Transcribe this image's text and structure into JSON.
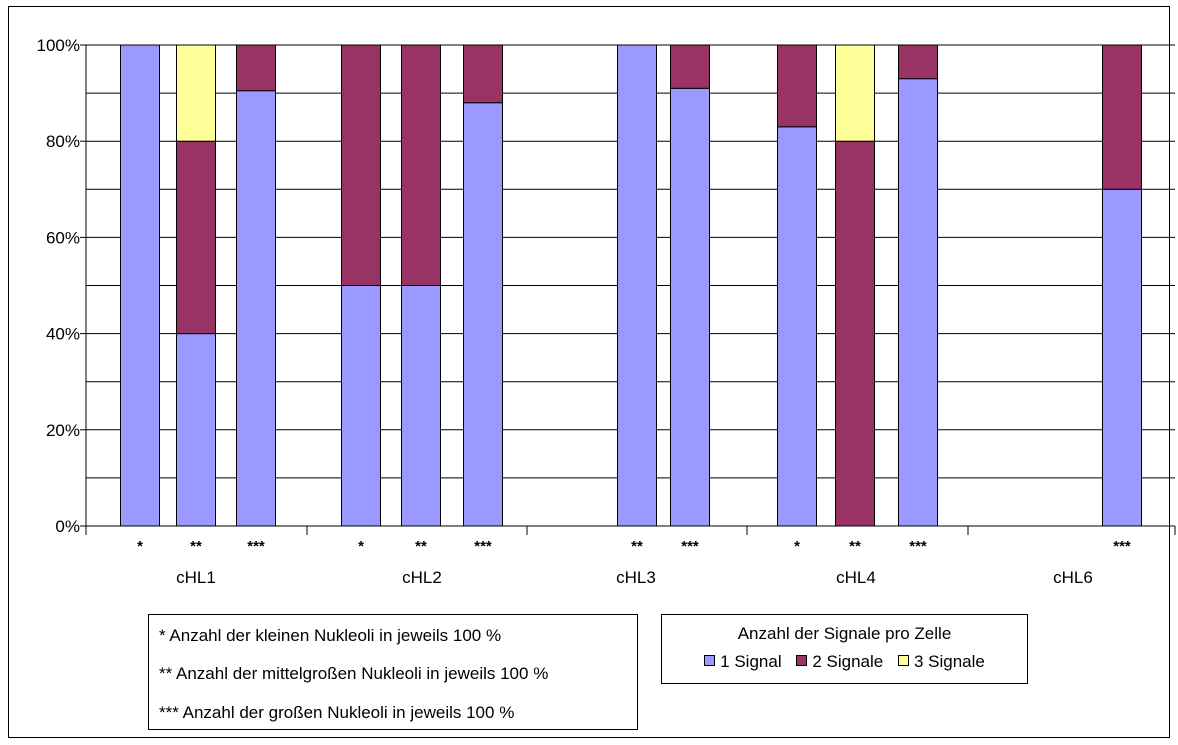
{
  "chart_data": {
    "type": "bar",
    "stacked": true,
    "y_axis": {
      "min": 0,
      "max": 100,
      "ticks": [
        "0%",
        "20%",
        "40%",
        "60%",
        "80%",
        "100%"
      ]
    },
    "grid": true,
    "groups": [
      "cHL1",
      "cHL2",
      "cHL3",
      "cHL4",
      "cHL6"
    ],
    "bars": [
      {
        "group": "cHL1",
        "label": "*",
        "values": [
          100,
          0,
          0
        ]
      },
      {
        "group": "cHL1",
        "label": "**",
        "values": [
          40,
          40,
          20
        ]
      },
      {
        "group": "cHL1",
        "label": "***",
        "values": [
          90.5,
          9.5,
          0
        ]
      },
      {
        "group": "cHL2",
        "label": "*",
        "values": [
          50,
          50,
          0
        ]
      },
      {
        "group": "cHL2",
        "label": "**",
        "values": [
          50,
          50,
          0
        ]
      },
      {
        "group": "cHL2",
        "label": "***",
        "values": [
          88,
          12,
          0
        ]
      },
      {
        "group": "cHL3",
        "label": "**",
        "values": [
          100,
          0,
          0
        ]
      },
      {
        "group": "cHL3",
        "label": "***",
        "values": [
          91,
          9,
          0
        ]
      },
      {
        "group": "cHL4",
        "label": "*",
        "values": [
          83,
          17,
          0
        ]
      },
      {
        "group": "cHL4",
        "label": "**",
        "values": [
          0,
          80,
          20
        ]
      },
      {
        "group": "cHL4",
        "label": "***",
        "values": [
          93,
          7,
          0
        ]
      },
      {
        "group": "cHL6",
        "label": "***",
        "values": [
          70,
          30,
          0
        ]
      }
    ],
    "series": [
      {
        "name": "1 Signal",
        "color": "#9999FF"
      },
      {
        "name": "2 Signale",
        "color": "#993366"
      },
      {
        "name": "3 Signale",
        "color": "#FFFF99"
      }
    ],
    "legend": {
      "title": "Anzahl der Signale pro Zelle",
      "position": "bottom-right"
    }
  },
  "notes": [
    "* Anzahl der kleinen Nukleoli in jeweils 100 %",
    "** Anzahl der mittelgroßen Nukleoli in jeweils 100 %",
    "*** Anzahl der großen Nukleoli in jeweils 100 %"
  ]
}
